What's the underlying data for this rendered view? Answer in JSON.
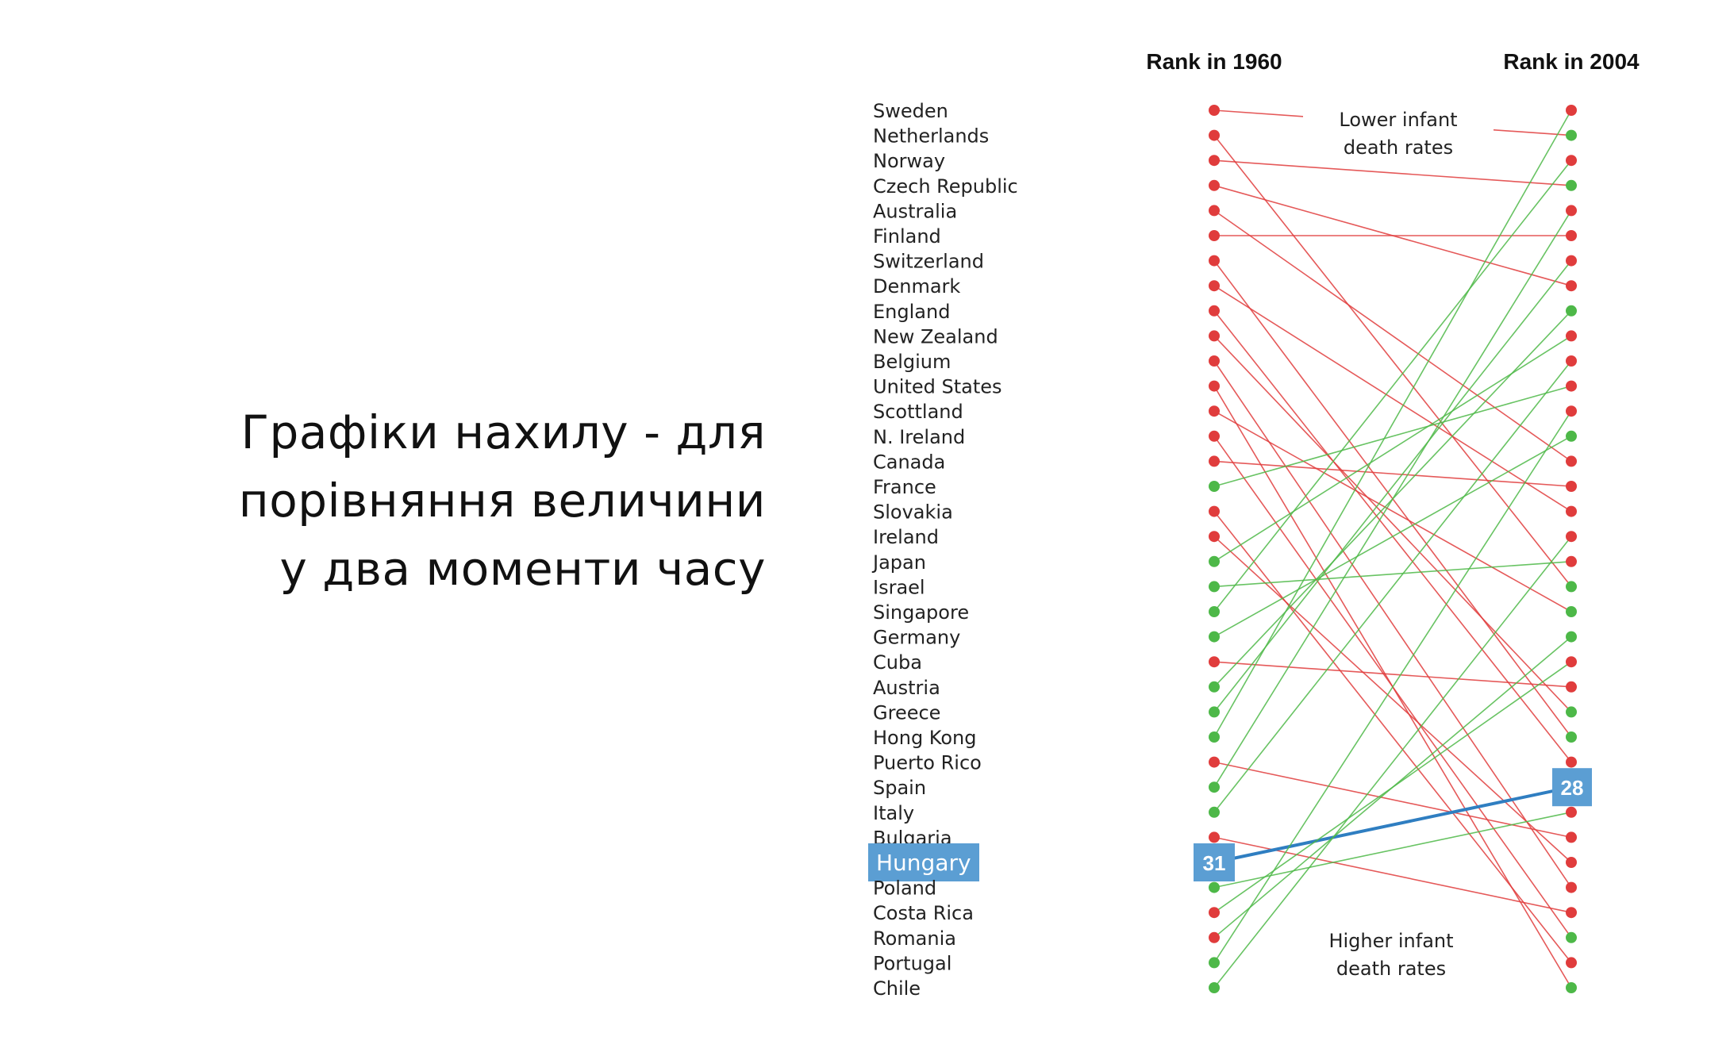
{
  "slide": {
    "title_lines": [
      "Графіки нахилу - для",
      "порівняння величини",
      "у два моменти часу"
    ]
  },
  "chart_data": {
    "type": "slope",
    "title": "",
    "columns": [
      "Rank in 1960",
      "Rank in 2004"
    ],
    "rank_range": [
      1,
      36
    ],
    "annotations": {
      "top": "Lower infant death rates",
      "bottom": "Higher infant death rates"
    },
    "highlight": {
      "country": "Hungary",
      "rank_1960": 31,
      "rank_2004": 28
    },
    "colors": {
      "improved": "#4db848",
      "worsened": "#e03c3c",
      "highlight": "#5b9ed3",
      "highlight_line": "#2f7ec1"
    },
    "countries": [
      "Sweden",
      "Netherlands",
      "Norway",
      "Czech Republic",
      "Australia",
      "Finland",
      "Switzerland",
      "Denmark",
      "England",
      "New Zealand",
      "Belgium",
      "United States",
      "Scottland",
      "N. Ireland",
      "Canada",
      "France",
      "Slovakia",
      "Ireland",
      "Japan",
      "Israel",
      "Singapore",
      "Germany",
      "Cuba",
      "Austria",
      "Greece",
      "Hong Kong",
      "Puerto Rico",
      "Spain",
      "Italy",
      "Bulgaria",
      "Hungary",
      "Poland",
      "Costa Rica",
      "Romania",
      "Portugal",
      "Chile"
    ],
    "rank_1960": [
      1,
      2,
      3,
      4,
      5,
      6,
      7,
      8,
      9,
      10,
      11,
      12,
      13,
      14,
      15,
      16,
      17,
      18,
      19,
      20,
      21,
      22,
      23,
      24,
      25,
      26,
      27,
      28,
      29,
      30,
      31,
      32,
      33,
      34,
      35,
      36
    ],
    "rank_2004": [
      2,
      20,
      4,
      8,
      15,
      6,
      26,
      17,
      27,
      25,
      32,
      36,
      21,
      34,
      16,
      12,
      35,
      31,
      10,
      19,
      3,
      14,
      24,
      9,
      7,
      1,
      30,
      5,
      11,
      33,
      28,
      29,
      23,
      22,
      13,
      18
    ],
    "dot_color_1960": [
      "red",
      "red",
      "red",
      "red",
      "red",
      "red",
      "red",
      "red",
      "red",
      "red",
      "red",
      "red",
      "red",
      "red",
      "red",
      "green",
      "red",
      "red",
      "green",
      "green",
      "green",
      "green",
      "red",
      "green",
      "green",
      "green",
      "red",
      "green",
      "green",
      "red",
      "red",
      "green",
      "red",
      "red",
      "green",
      "green"
    ],
    "dot_color_2004": [
      "green",
      "green",
      "green",
      "red",
      "red",
      "red",
      "green",
      "red",
      "red",
      "green",
      "red",
      "green",
      "green",
      "green",
      "red",
      "red",
      "red",
      "red",
      "red",
      "red",
      "red",
      "green",
      "red",
      "green",
      "red",
      "red",
      "red",
      "red",
      "red",
      "red",
      "green",
      "red",
      "red",
      "green",
      "red",
      "red"
    ],
    "grid": false,
    "legend": "none"
  }
}
